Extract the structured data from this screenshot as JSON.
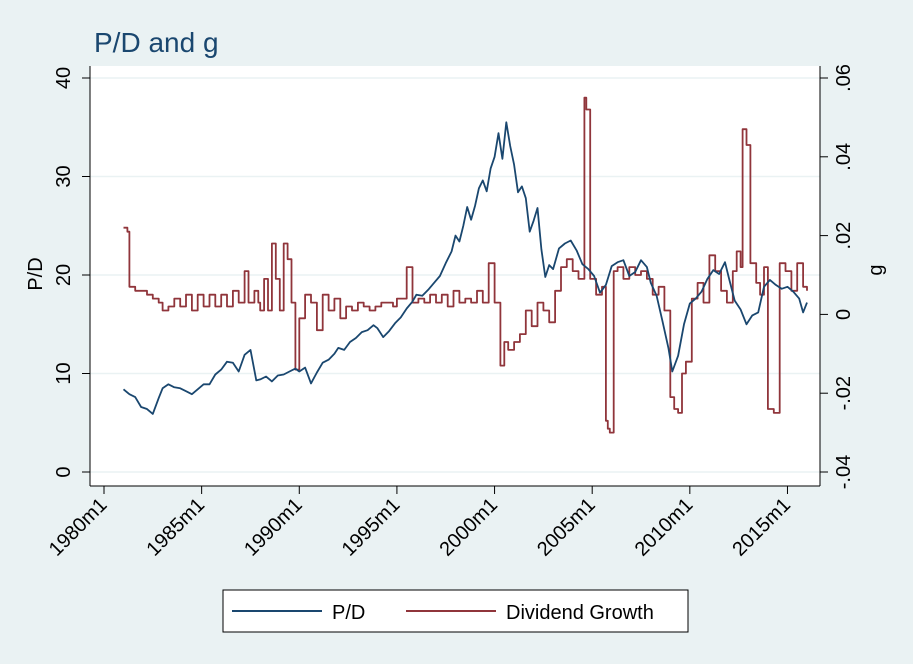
{
  "chart_data": {
    "type": "line",
    "title": "P/D and g",
    "xlabel": "",
    "ylabel_left": "P/D",
    "ylabel_right": "g",
    "x_ticks": [
      "1980m1",
      "1985m1",
      "1990m1",
      "1995m1",
      "2000m1",
      "2005m1",
      "2010m1",
      "2015m1"
    ],
    "xlim": [
      1980.0,
      2016.0
    ],
    "ylim_left": [
      0,
      40
    ],
    "ylim_right": [
      -0.04,
      0.06
    ],
    "y_ticks_left": [
      "0",
      "10",
      "20",
      "30",
      "40"
    ],
    "y_ticks_right": [
      "-.04",
      "-.02",
      "0",
      ".02",
      ".04",
      ".06"
    ],
    "grid": true,
    "legend_position": "bottom",
    "colors": {
      "pd": "#1a476f",
      "g": "#90353b",
      "background": "#eaf2f3",
      "plot_background": "#ffffff",
      "grid": "#eaf2f3"
    },
    "series": [
      {
        "name": "P/D",
        "axis": "left",
        "x": [
          1981.0,
          1981.3,
          1981.6,
          1981.9,
          1982.2,
          1982.5,
          1982.8,
          1983.0,
          1983.3,
          1983.6,
          1983.9,
          1984.2,
          1984.5,
          1984.8,
          1985.1,
          1985.4,
          1985.7,
          1986.0,
          1986.3,
          1986.6,
          1986.9,
          1987.2,
          1987.5,
          1987.8,
          1988.0,
          1988.3,
          1988.6,
          1988.9,
          1989.2,
          1989.5,
          1989.8,
          1990.0,
          1990.3,
          1990.6,
          1990.9,
          1991.2,
          1991.5,
          1991.8,
          1992.0,
          1992.3,
          1992.6,
          1992.9,
          1993.2,
          1993.5,
          1993.8,
          1994.0,
          1994.3,
          1994.6,
          1994.9,
          1995.2,
          1995.5,
          1995.8,
          1996.0,
          1996.3,
          1996.6,
          1996.9,
          1997.2,
          1997.5,
          1997.8,
          1998.0,
          1998.2,
          1998.4,
          1998.6,
          1998.8,
          1999.0,
          1999.2,
          1999.4,
          1999.6,
          1999.8,
          2000.0,
          2000.2,
          2000.4,
          2000.6,
          2000.8,
          2001.0,
          2001.2,
          2001.4,
          2001.6,
          2001.8,
          2002.0,
          2002.2,
          2002.4,
          2002.6,
          2002.8,
          2003.0,
          2003.3,
          2003.6,
          2003.9,
          2004.2,
          2004.5,
          2004.8,
          2005.1,
          2005.4,
          2005.7,
          2006.0,
          2006.3,
          2006.6,
          2006.9,
          2007.2,
          2007.5,
          2007.8,
          2008.0,
          2008.3,
          2008.6,
          2008.9,
          2009.1,
          2009.4,
          2009.7,
          2010.0,
          2010.3,
          2010.6,
          2010.9,
          2011.2,
          2011.5,
          2011.8,
          2012.0,
          2012.3,
          2012.6,
          2012.9,
          2013.2,
          2013.5,
          2013.8,
          2014.1,
          2014.4,
          2014.7,
          2015.0,
          2015.3,
          2015.6,
          2015.8,
          2016.0
        ],
        "y": [
          8.4,
          7.9,
          7.6,
          6.6,
          6.4,
          5.9,
          7.5,
          8.5,
          8.9,
          8.6,
          8.5,
          8.2,
          7.9,
          8.4,
          8.9,
          8.9,
          9.9,
          10.4,
          11.2,
          11.1,
          10.2,
          11.9,
          12.4,
          9.3,
          9.4,
          9.7,
          9.2,
          9.8,
          9.9,
          10.2,
          10.5,
          10.2,
          10.6,
          9.0,
          10.1,
          11.1,
          11.4,
          12.0,
          12.6,
          12.4,
          13.2,
          13.6,
          14.2,
          14.4,
          14.9,
          14.6,
          13.7,
          14.3,
          15.1,
          15.7,
          16.6,
          17.3,
          18.0,
          17.9,
          18.5,
          19.2,
          19.9,
          21.2,
          22.4,
          24.0,
          23.4,
          25.0,
          26.9,
          25.6,
          27.0,
          28.8,
          29.6,
          28.5,
          30.8,
          32.0,
          34.4,
          31.8,
          35.5,
          33.1,
          31.2,
          28.4,
          29.0,
          27.8,
          24.4,
          25.5,
          26.8,
          22.6,
          19.8,
          21.0,
          20.6,
          22.7,
          23.2,
          23.5,
          22.5,
          21.1,
          20.6,
          19.9,
          18.2,
          19.0,
          20.9,
          21.3,
          21.5,
          19.9,
          20.3,
          21.5,
          20.8,
          19.2,
          17.9,
          15.3,
          12.6,
          10.2,
          11.8,
          15.0,
          17.1,
          17.6,
          18.3,
          19.6,
          20.5,
          20.1,
          21.3,
          19.7,
          17.4,
          16.5,
          15.0,
          15.9,
          16.2,
          18.8,
          19.5,
          19.0,
          18.6,
          18.8,
          18.3,
          17.6,
          16.2,
          17.2
        ]
      },
      {
        "name": "Dividend Growth",
        "axis": "right",
        "x": [
          1981.0,
          1981.2,
          1981.3,
          1981.6,
          1981.9,
          1982.2,
          1982.5,
          1982.8,
          1983.0,
          1983.3,
          1983.6,
          1983.9,
          1984.2,
          1984.5,
          1984.8,
          1985.1,
          1985.4,
          1985.7,
          1986.0,
          1986.3,
          1986.6,
          1986.9,
          1987.2,
          1987.4,
          1987.7,
          1987.9,
          1988.0,
          1988.2,
          1988.4,
          1988.6,
          1988.8,
          1989.0,
          1989.2,
          1989.4,
          1989.6,
          1989.8,
          1990.0,
          1990.3,
          1990.6,
          1990.9,
          1991.2,
          1991.5,
          1991.8,
          1992.1,
          1992.4,
          1992.7,
          1993.0,
          1993.3,
          1993.6,
          1993.9,
          1994.2,
          1994.5,
          1994.8,
          1995.0,
          1995.3,
          1995.5,
          1995.8,
          1996.1,
          1996.4,
          1996.7,
          1997.0,
          1997.3,
          1997.6,
          1997.9,
          1998.2,
          1998.5,
          1998.8,
          1999.1,
          1999.4,
          1999.7,
          2000.0,
          2000.3,
          2000.5,
          2000.7,
          2001.0,
          2001.3,
          2001.6,
          2001.9,
          2002.2,
          2002.5,
          2002.8,
          2003.1,
          2003.4,
          2003.7,
          2004.0,
          2004.3,
          2004.6,
          2004.7,
          2004.9,
          2005.2,
          2005.5,
          2005.7,
          2005.8,
          2005.9,
          2006.1,
          2006.3,
          2006.6,
          2006.9,
          2007.2,
          2007.5,
          2007.8,
          2008.1,
          2008.4,
          2008.7,
          2009.0,
          2009.2,
          2009.4,
          2009.6,
          2009.8,
          2010.1,
          2010.4,
          2010.7,
          2011.0,
          2011.3,
          2011.6,
          2011.9,
          2012.2,
          2012.4,
          2012.6,
          2012.7,
          2012.9,
          2013.1,
          2013.4,
          2013.6,
          2013.8,
          2014.0,
          2014.3,
          2014.6,
          2014.9,
          2015.2,
          2015.5,
          2015.8,
          2016.0
        ],
        "y": [
          0.022,
          0.021,
          0.007,
          0.006,
          0.006,
          0.005,
          0.004,
          0.003,
          0.001,
          0.002,
          0.004,
          0.002,
          0.005,
          0.001,
          0.005,
          0.002,
          0.005,
          0.002,
          0.005,
          0.002,
          0.006,
          0.003,
          0.011,
          0.003,
          0.006,
          0.003,
          0.001,
          0.009,
          0.001,
          0.018,
          0.009,
          0.001,
          0.018,
          0.014,
          0.003,
          -0.014,
          -0.001,
          0.005,
          0.003,
          -0.004,
          0.005,
          0.001,
          0.004,
          -0.001,
          0.002,
          0.001,
          0.003,
          0.002,
          0.001,
          0.002,
          0.003,
          0.003,
          0.002,
          0.004,
          0.004,
          0.012,
          0.003,
          0.004,
          0.003,
          0.005,
          0.003,
          0.005,
          0.002,
          0.006,
          0.003,
          0.004,
          0.003,
          0.006,
          0.003,
          0.013,
          0.003,
          -0.013,
          -0.007,
          -0.009,
          -0.007,
          -0.005,
          0.001,
          -0.003,
          0.003,
          0.001,
          -0.002,
          0.006,
          0.012,
          0.014,
          0.011,
          0.009,
          0.055,
          0.052,
          0.009,
          0.005,
          0.007,
          -0.027,
          -0.029,
          -0.03,
          0.011,
          0.012,
          0.009,
          0.012,
          0.01,
          0.011,
          0.009,
          0.005,
          0.007,
          0.001,
          -0.021,
          -0.024,
          -0.025,
          -0.015,
          -0.012,
          0.004,
          0.008,
          0.003,
          0.015,
          0.011,
          0.006,
          0.003,
          0.011,
          0.016,
          0.012,
          0.047,
          0.043,
          0.013,
          0.008,
          0.005,
          0.012,
          -0.024,
          -0.025,
          0.013,
          0.011,
          0.006,
          0.013,
          0.007,
          0.006
        ]
      }
    ]
  }
}
